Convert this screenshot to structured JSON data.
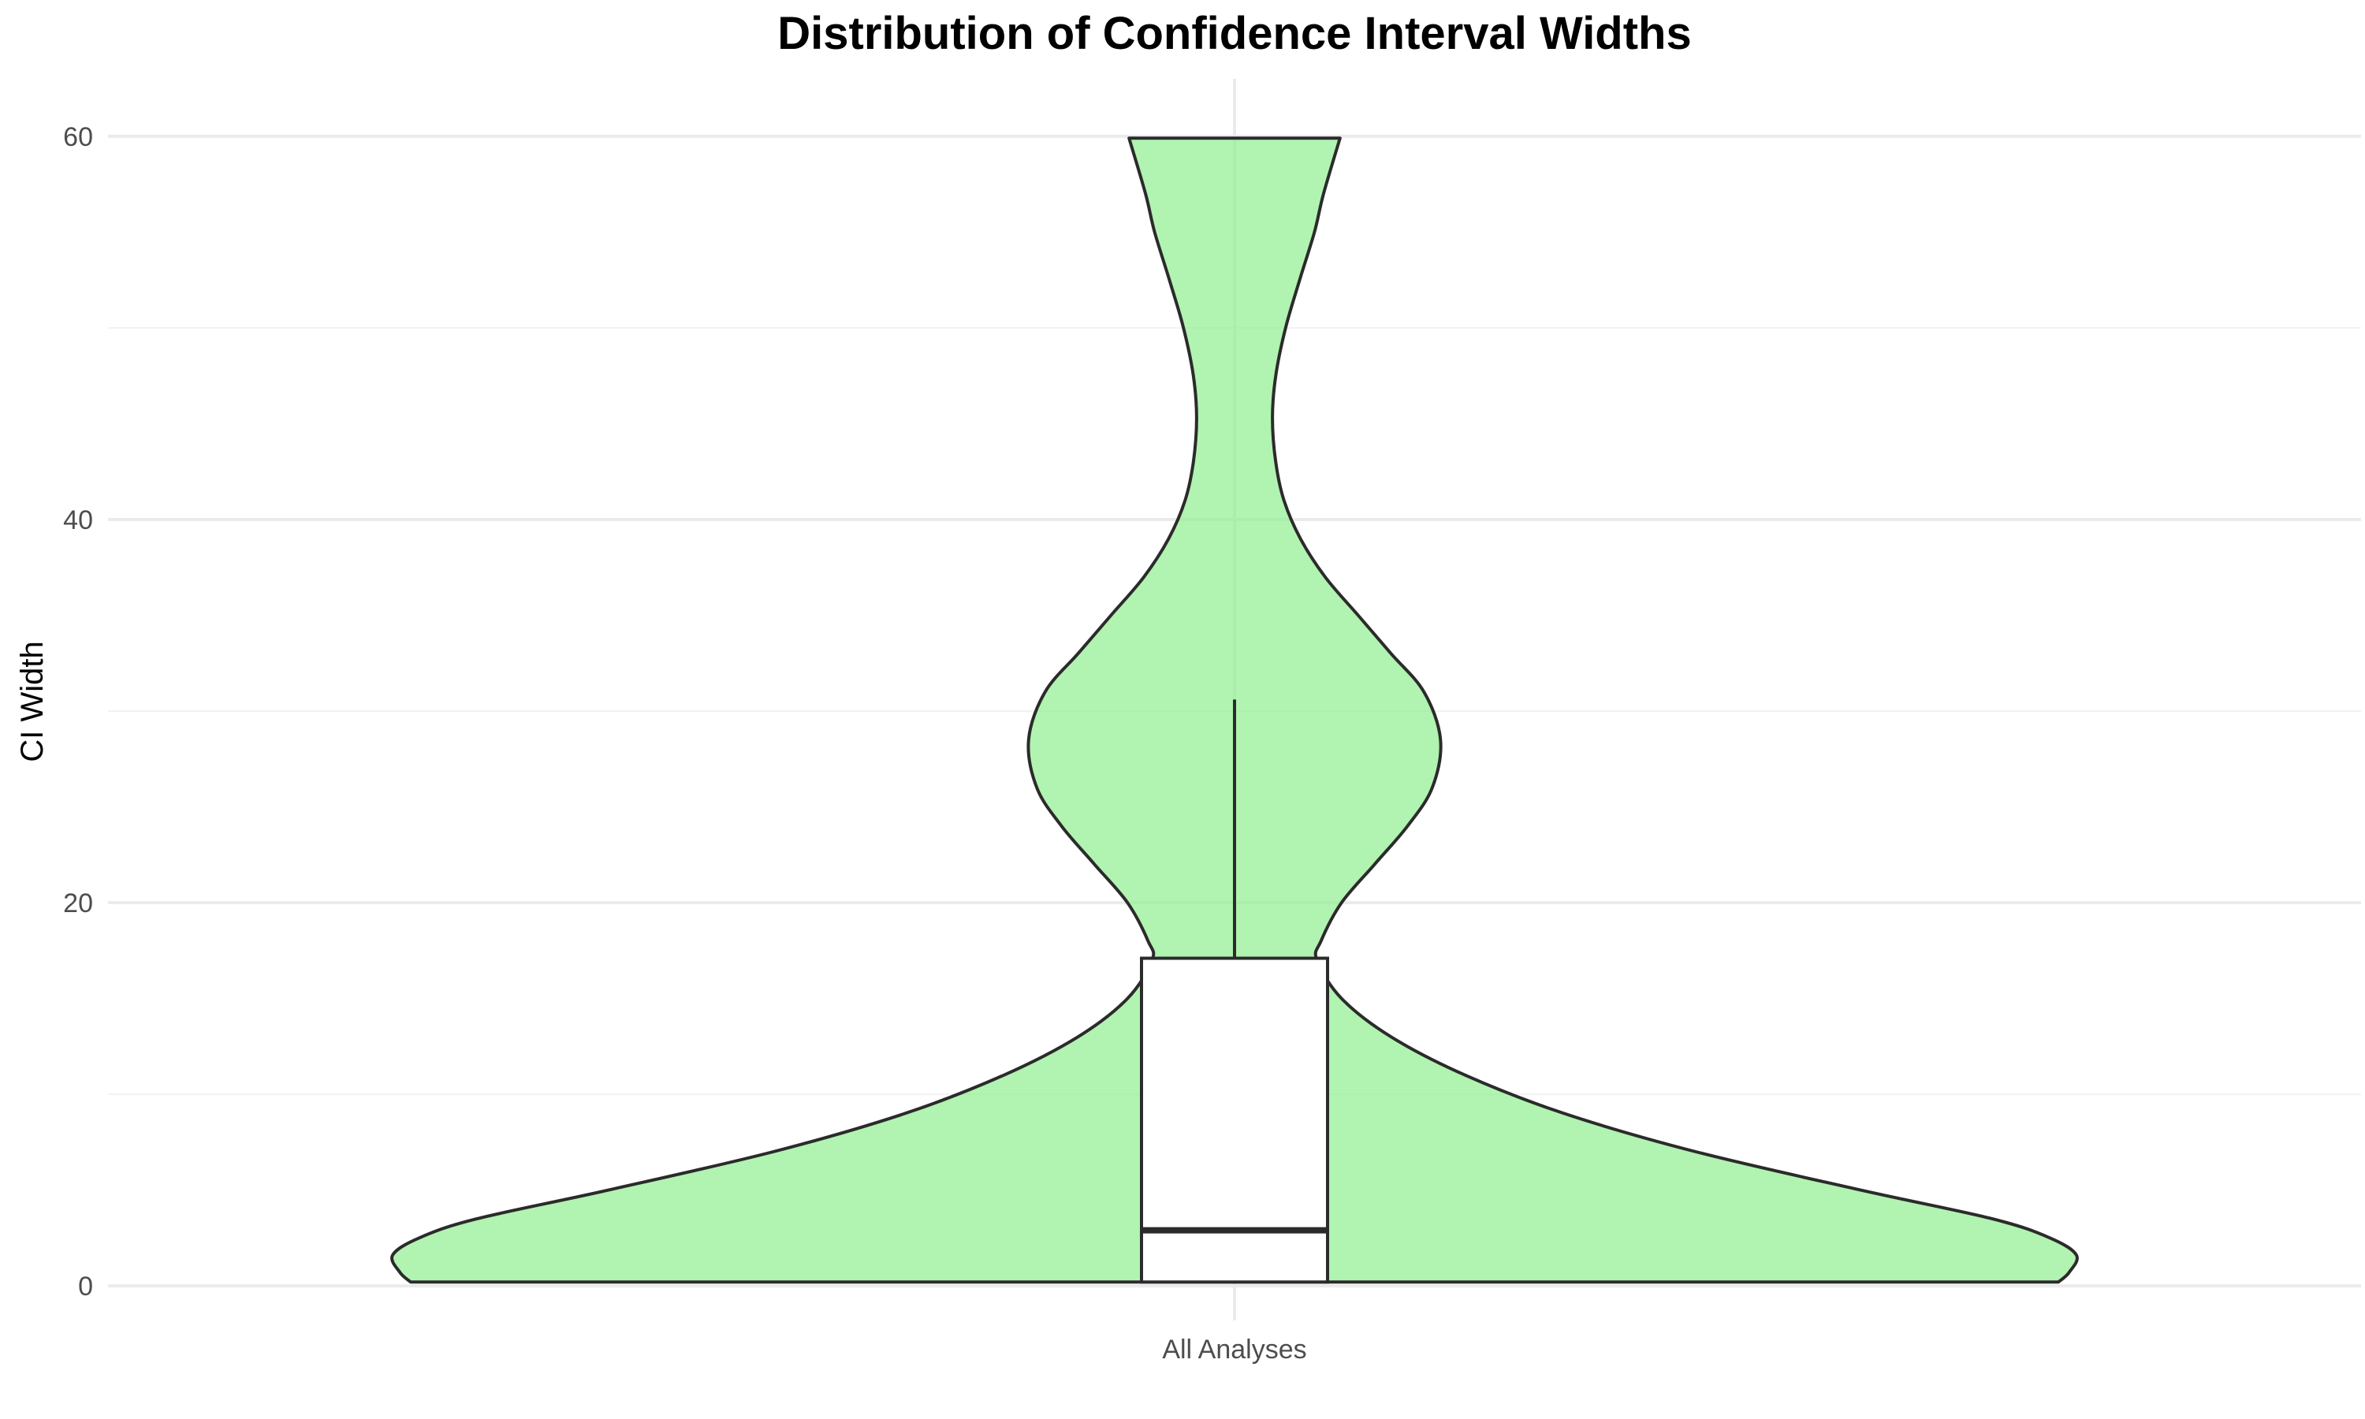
{
  "chart_data": {
    "type": "violin",
    "title": "Distribution of Confidence Interval Widths",
    "xlabel": "",
    "ylabel": "CI Width",
    "categories": [
      "All Analyses"
    ],
    "ylim": [
      -1.6,
      63
    ],
    "yticks": [
      0,
      20,
      40,
      60
    ],
    "grid": true,
    "fill_color": "#90ee90",
    "stroke_color": "#2b2b2b",
    "box": {
      "min": 0.2,
      "q1": 0.2,
      "median": 2.9,
      "q3": 17.1,
      "whisker_high": 30.6
    },
    "violin_profile": [
      {
        "y": 0.2,
        "w": 1.0
      },
      {
        "y": 0.7,
        "w": 1.013
      },
      {
        "y": 1.6,
        "w": 1.022
      },
      {
        "y": 2.5,
        "w": 0.99
      },
      {
        "y": 3.5,
        "w": 0.92
      },
      {
        "y": 5.0,
        "w": 0.76
      },
      {
        "y": 7.0,
        "w": 0.56
      },
      {
        "y": 9.0,
        "w": 0.4
      },
      {
        "y": 11.0,
        "w": 0.28
      },
      {
        "y": 13.0,
        "w": 0.19
      },
      {
        "y": 15.0,
        "w": 0.13
      },
      {
        "y": 17.0,
        "w": 0.1
      },
      {
        "y": 18.0,
        "w": 0.105
      },
      {
        "y": 20.0,
        "w": 0.13
      },
      {
        "y": 22.0,
        "w": 0.17
      },
      {
        "y": 24.0,
        "w": 0.21
      },
      {
        "y": 26.0,
        "w": 0.24
      },
      {
        "y": 28.5,
        "w": 0.25
      },
      {
        "y": 31.0,
        "w": 0.23
      },
      {
        "y": 33.0,
        "w": 0.19
      },
      {
        "y": 35.0,
        "w": 0.15
      },
      {
        "y": 37.0,
        "w": 0.11
      },
      {
        "y": 39.0,
        "w": 0.08
      },
      {
        "y": 41.0,
        "w": 0.06
      },
      {
        "y": 43.0,
        "w": 0.05
      },
      {
        "y": 45.3,
        "w": 0.046
      },
      {
        "y": 47.5,
        "w": 0.05
      },
      {
        "y": 50.0,
        "w": 0.062
      },
      {
        "y": 52.5,
        "w": 0.079
      },
      {
        "y": 55.0,
        "w": 0.097
      },
      {
        "y": 57.0,
        "w": 0.108
      },
      {
        "y": 59.9,
        "w": 0.128
      }
    ]
  }
}
